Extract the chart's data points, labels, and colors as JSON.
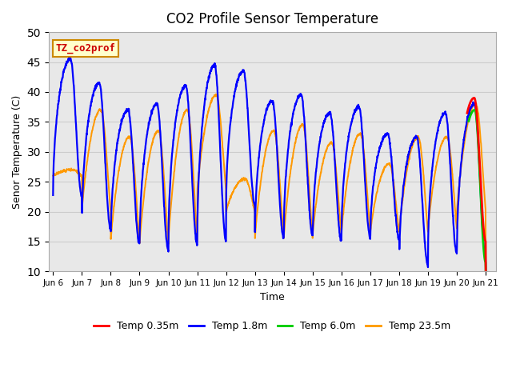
{
  "title": "CO2 Profile Sensor Temperature",
  "ylabel": "Senor Temperature (C)",
  "xlabel": "Time",
  "annotation_text": "TZ_co2prof",
  "annotation_color": "#cc0000",
  "annotation_bg": "#ffffcc",
  "annotation_border": "#cc8800",
  "ylim": [
    10,
    50
  ],
  "grid_color": "#cccccc",
  "bg_color": "#e8e8e8",
  "colors": {
    "Temp 0.35m": "#ff0000",
    "Temp 1.8m": "#0000ff",
    "Temp 6.0m": "#00cc00",
    "Temp 23.5m": "#ff9900"
  },
  "x_tick_labels": [
    "Jun 6",
    "Jun 7",
    "Jun 8",
    "Jun 9",
    "Jun 10",
    "Jun 11",
    "Jun 12",
    "Jun 13",
    "Jun 14",
    "Jun 15",
    "Jun 16",
    "Jun 17",
    "Jun 18",
    "Jun 19",
    "Jun 20",
    "Jun 21"
  ],
  "blue_peaks": [
    45.5,
    41.5,
    37.0,
    38.0,
    41.0,
    44.5,
    43.5,
    38.5,
    39.5,
    36.5,
    37.5,
    33.0,
    32.5,
    36.5,
    38.0
  ],
  "blue_mins": [
    22.5,
    17.0,
    14.5,
    13.5,
    14.5,
    15.0,
    21.0,
    15.5,
    16.0,
    15.0,
    15.5,
    15.5,
    11.0,
    13.0,
    12.5
  ],
  "orange_peaks": [
    27.0,
    37.0,
    32.5,
    33.5,
    37.0,
    39.5,
    25.5,
    33.5,
    34.5,
    31.5,
    33.0,
    28.0,
    32.5,
    32.5,
    38.0
  ],
  "orange_mins": [
    26.0,
    20.0,
    15.0,
    14.5,
    15.0,
    23.5,
    20.0,
    15.5,
    15.5,
    16.0,
    16.5,
    16.5,
    16.5,
    17.0,
    20.0
  ],
  "n_points": 2000
}
